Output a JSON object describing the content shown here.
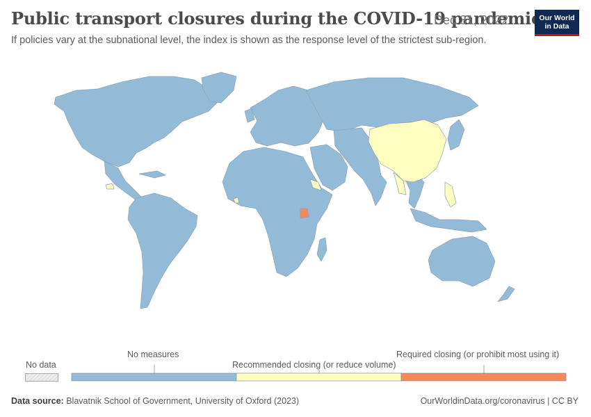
{
  "header": {
    "title": "Public transport closures during the COVID-19 pandemic",
    "date": "Dec 31, 2022",
    "subtitle": "If policies vary at the subnational level, the index is shown as the response level of the strictest sub-region."
  },
  "logo": {
    "line1": "Our World",
    "line2": "in Data"
  },
  "colors": {
    "no_measures": "#93bbd8",
    "recommended": "#ffffc0",
    "required": "#f48a5a",
    "no_data": "#eeeeee",
    "border": "#8fa6b8"
  },
  "legend": {
    "no_data_label": "No data",
    "categories": [
      {
        "label": "No measures",
        "color": "#93bbd8"
      },
      {
        "label": "Recommended closing (or reduce volume)",
        "color": "#ffffc0"
      },
      {
        "label": "Required closing (or prohibit most using it)",
        "color": "#f48a5a"
      }
    ]
  },
  "map_data": {
    "default_category": "No measures",
    "highlighted": [
      {
        "region": "China",
        "category": "Recommended closing (or reduce volume)"
      },
      {
        "region": "Myanmar",
        "category": "Recommended closing (or reduce volume)"
      },
      {
        "region": "Philippines",
        "category": "Recommended closing (or reduce volume)"
      },
      {
        "region": "Eritrea",
        "category": "Recommended closing (or reduce volume)"
      },
      {
        "region": "Honduras",
        "category": "Recommended closing (or reduce volume)"
      },
      {
        "region": "Sierra Leone",
        "category": "Recommended closing (or reduce volume)"
      },
      {
        "region": "Uganda",
        "category": "Required closing (or prohibit most using it)"
      }
    ]
  },
  "footer": {
    "source_label": "Data source:",
    "source_text": "Blavatnik School of Government, University of Oxford (2023)",
    "url": "OurWorldinData.org/coronavirus",
    "license": "CC BY"
  }
}
